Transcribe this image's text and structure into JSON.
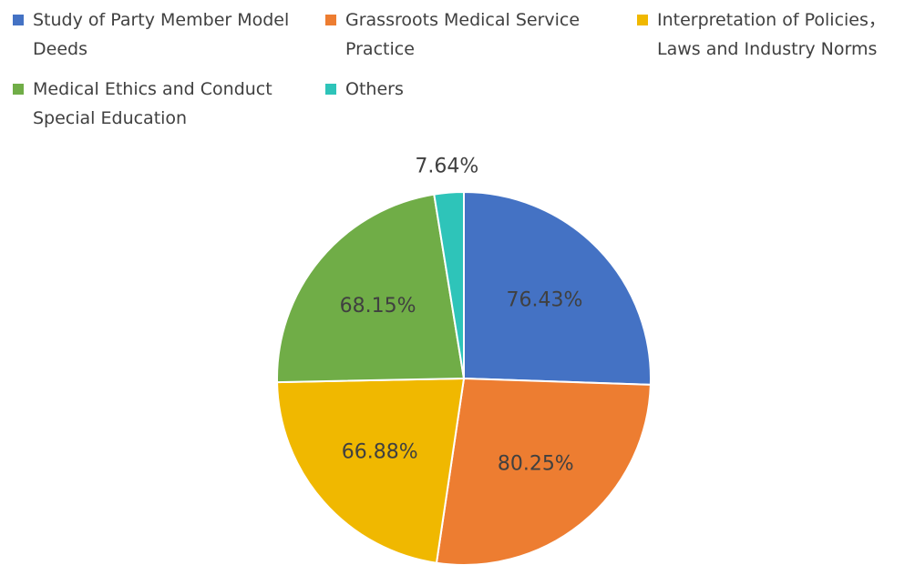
{
  "chart_data": {
    "type": "pie",
    "categories": [
      "Study of Party Member Model Deeds",
      "Grassroots Medical Service Practice",
      "Interpretation of Policies，Laws and Industry Norms",
      "Medical Ethics and Conduct Special Education",
      "Others"
    ],
    "values": [
      76.43,
      80.25,
      66.88,
      68.15,
      7.64
    ],
    "value_labels": [
      "76.43%",
      "80.25%",
      "66.88%",
      "68.15%",
      "7.64%"
    ],
    "colors": [
      "#4472c4",
      "#ed7d31",
      "#f0b800",
      "#70ad47",
      "#2ec4b9"
    ],
    "legend": "top"
  }
}
